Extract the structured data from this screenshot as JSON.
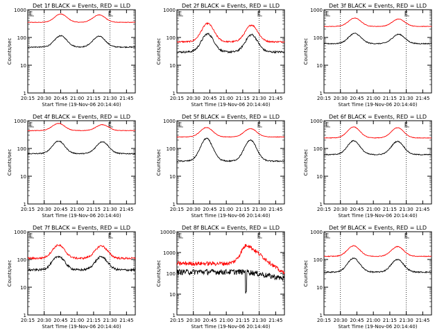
{
  "chart_data": [
    {
      "type": "line",
      "title": "Det 1f BLACK = Events, RED = LLD",
      "ylabel": "Counts/sec",
      "xlabel": "Start Time (19-Nov-06 20:14:40)",
      "ylim": [
        1,
        1000
      ],
      "yscale": "log",
      "xlim": [
        "20:15",
        "21:53"
      ],
      "x_ticks": [
        "20:15",
        "20:30",
        "20:45",
        "21:00",
        "21:15",
        "21:30",
        "21:45"
      ],
      "y_ticks": [
        "1",
        "10",
        "100",
        "1000"
      ],
      "markers": [
        {
          "label": "E",
          "at": "20:15"
        },
        {
          "label": "E",
          "at": "21:27"
        }
      ],
      "vlines": [
        "20:30",
        "21:30"
      ],
      "series": [
        {
          "color": "#ff0000",
          "base": 350,
          "peaks": [
            {
              "t": "20:45",
              "v": 700
            },
            {
              "t": "21:20",
              "v": 650
            }
          ],
          "noise": 0.02
        },
        {
          "color": "#000000",
          "base": 45,
          "peaks": [
            {
              "t": "20:45",
              "v": 115
            },
            {
              "t": "21:20",
              "v": 110
            }
          ],
          "noise": 0.04
        }
      ]
    },
    {
      "type": "line",
      "title": "Det 2f BLACK = Events, RED = LLD",
      "ylabel": "Counts/sec",
      "xlabel": "Start Time (19-Nov-06 20:14:40)",
      "ylim": [
        1,
        1000
      ],
      "yscale": "log",
      "xlim": [
        "20:15",
        "21:53"
      ],
      "x_ticks": [
        "20:15",
        "20:30",
        "20:45",
        "21:00",
        "21:15",
        "21:30",
        "21:45"
      ],
      "y_ticks": [
        "1",
        "10",
        "100",
        "1000"
      ],
      "markers": [
        {
          "label": "E",
          "at": "20:15"
        },
        {
          "label": "E",
          "at": "21:27"
        }
      ],
      "vlines": [
        "20:30",
        "21:30"
      ],
      "series": [
        {
          "color": "#ff0000",
          "base": 70,
          "peaks": [
            {
              "t": "20:43",
              "v": 320
            },
            {
              "t": "21:23",
              "v": 280
            }
          ],
          "noise": 0.06
        },
        {
          "color": "#000000",
          "base": 30,
          "peaks": [
            {
              "t": "20:43",
              "v": 135
            },
            {
              "t": "21:23",
              "v": 125
            }
          ],
          "noise": 0.08
        }
      ]
    },
    {
      "type": "line",
      "title": "Det 3f BLACK = Events, RED = LLD",
      "ylabel": "Counts/sec",
      "xlabel": "Start Time (19-Nov-06 20:14:40)",
      "ylim": [
        1,
        1000
      ],
      "yscale": "log",
      "xlim": [
        "20:15",
        "21:53"
      ],
      "x_ticks": [
        "20:15",
        "20:30",
        "20:45",
        "21:00",
        "21:15",
        "21:30",
        "21:45"
      ],
      "y_ticks": [
        "1",
        "10",
        "100",
        "1000"
      ],
      "markers": [
        {
          "label": "E",
          "at": "20:15"
        },
        {
          "label": "E",
          "at": "21:27"
        }
      ],
      "vlines": [
        "20:30",
        "21:30"
      ],
      "series": [
        {
          "color": "#ff0000",
          "base": 250,
          "peaks": [
            {
              "t": "20:43",
              "v": 500
            },
            {
              "t": "21:23",
              "v": 460
            }
          ],
          "noise": 0.02
        },
        {
          "color": "#000000",
          "base": 60,
          "peaks": [
            {
              "t": "20:43",
              "v": 140
            },
            {
              "t": "21:23",
              "v": 130
            }
          ],
          "noise": 0.04
        }
      ]
    },
    {
      "type": "line",
      "title": "Det 4f BLACK = Events, RED = LLD",
      "ylabel": "Counts/sec",
      "xlabel": "Start Time (19-Nov-06 20:14:40)",
      "ylim": [
        1,
        1000
      ],
      "yscale": "log",
      "xlim": [
        "20:15",
        "21:53"
      ],
      "x_ticks": [
        "20:15",
        "20:30",
        "20:45",
        "21:00",
        "21:15",
        "21:30",
        "21:45"
      ],
      "y_ticks": [
        "1",
        "10",
        "100",
        "1000"
      ],
      "markers": [
        {
          "label": "E",
          "at": "20:15"
        },
        {
          "label": "E",
          "at": "21:27"
        }
      ],
      "vlines": [
        "20:30",
        "21:30"
      ],
      "series": [
        {
          "color": "#ff0000",
          "base": 440,
          "peaks": [
            {
              "t": "20:43",
              "v": 800
            },
            {
              "t": "21:23",
              "v": 720
            }
          ],
          "noise": 0.02
        },
        {
          "color": "#000000",
          "base": 65,
          "peaks": [
            {
              "t": "20:43",
              "v": 185
            },
            {
              "t": "21:23",
              "v": 175
            }
          ],
          "noise": 0.04
        }
      ]
    },
    {
      "type": "line",
      "title": "Det 5f BLACK = Events, RED = LLD",
      "ylabel": "Counts/sec",
      "xlabel": "Start Time (19-Nov-06 20:14:40)",
      "ylim": [
        1,
        1000
      ],
      "yscale": "log",
      "xlim": [
        "20:15",
        "21:53"
      ],
      "x_ticks": [
        "20:15",
        "20:30",
        "20:45",
        "21:00",
        "21:15",
        "21:30",
        "21:45"
      ],
      "y_ticks": [
        "1",
        "10",
        "100",
        "1000"
      ],
      "markers": [
        {
          "label": "E",
          "at": "20:15"
        },
        {
          "label": "E",
          "at": "21:27"
        }
      ],
      "vlines": [
        "20:30",
        "21:30"
      ],
      "series": [
        {
          "color": "#ff0000",
          "base": 260,
          "peaks": [
            {
              "t": "20:42",
              "v": 570
            },
            {
              "t": "21:22",
              "v": 520
            }
          ],
          "noise": 0.02
        },
        {
          "color": "#000000",
          "base": 35,
          "peaks": [
            {
              "t": "20:42",
              "v": 230
            },
            {
              "t": "21:22",
              "v": 200
            }
          ],
          "noise": 0.05
        }
      ]
    },
    {
      "type": "line",
      "title": "Det 6f BLACK = Events, RED = LLD",
      "ylabel": "Counts/sec",
      "xlabel": "Start Time (19-Nov-06 20:14:40)",
      "ylim": [
        1,
        1000
      ],
      "yscale": "log",
      "xlim": [
        "20:15",
        "21:53"
      ],
      "x_ticks": [
        "20:15",
        "20:30",
        "20:45",
        "21:00",
        "21:15",
        "21:30",
        "21:45"
      ],
      "y_ticks": [
        "1",
        "10",
        "100",
        "1000"
      ],
      "markers": [
        {
          "label": "E",
          "at": "20:15"
        },
        {
          "label": "E",
          "at": "21:27"
        }
      ],
      "vlines": [
        "20:30",
        "21:30"
      ],
      "series": [
        {
          "color": "#ff0000",
          "base": 240,
          "peaks": [
            {
              "t": "20:42",
              "v": 600
            },
            {
              "t": "21:22",
              "v": 560
            }
          ],
          "noise": 0.02
        },
        {
          "color": "#000000",
          "base": 60,
          "peaks": [
            {
              "t": "20:42",
              "v": 190
            },
            {
              "t": "21:22",
              "v": 180
            }
          ],
          "noise": 0.04
        }
      ]
    },
    {
      "type": "line",
      "title": "Det 7f BLACK = Events, RED = LLD",
      "ylabel": "Counts/sec",
      "xlabel": "Start Time (19-Nov-06 20:14:40)",
      "ylim": [
        1,
        1000
      ],
      "yscale": "log",
      "xlim": [
        "20:15",
        "21:53"
      ],
      "x_ticks": [
        "20:15",
        "20:30",
        "20:45",
        "21:00",
        "21:15",
        "21:30",
        "21:45"
      ],
      "y_ticks": [
        "1",
        "10",
        "100",
        "1000"
      ],
      "markers": [
        {
          "label": "E",
          "at": "20:15"
        },
        {
          "label": "E",
          "at": "21:27"
        }
      ],
      "vlines": [
        "20:30",
        "21:30"
      ],
      "series": [
        {
          "color": "#ff0000",
          "base": 110,
          "peaks": [
            {
              "t": "20:43",
              "v": 330
            },
            {
              "t": "21:22",
              "v": 310
            }
          ],
          "noise": 0.08
        },
        {
          "color": "#000000",
          "base": 42,
          "peaks": [
            {
              "t": "20:43",
              "v": 130
            },
            {
              "t": "21:22",
              "v": 125
            }
          ],
          "noise": 0.09
        }
      ]
    },
    {
      "type": "line",
      "title": "Det 8f BLACK = Events, RED = LLD",
      "ylabel": "Counts/sec",
      "xlabel": "Start Time (19-Nov-06 20:14:40)",
      "ylim": [
        1,
        10000
      ],
      "yscale": "log",
      "xlim": [
        "20:15",
        "21:53"
      ],
      "x_ticks": [
        "20:15",
        "20:30",
        "20:45",
        "21:00",
        "21:15",
        "21:30",
        "21:45"
      ],
      "y_ticks": [
        "1",
        "10",
        "100",
        "1000",
        "10000"
      ],
      "markers": [
        {
          "label": "E",
          "at": "20:15"
        },
        {
          "label": "E",
          "at": "21:27"
        }
      ],
      "vlines": [
        "20:30",
        "21:30"
      ],
      "series": [
        {
          "color": "#ff0000",
          "base": 300,
          "peaks": [
            {
              "t": "21:19",
              "v": 2300
            }
          ],
          "noise": 0.22,
          "tail": 120
        },
        {
          "color": "#000000",
          "base": 120,
          "peaks": [],
          "noise": 0.3,
          "tail": 60,
          "dip": {
            "t": "21:18",
            "v": 15
          }
        }
      ]
    },
    {
      "type": "line",
      "title": "Det 9f BLACK = Events, RED = LLD",
      "ylabel": "Counts/sec",
      "xlabel": "Start Time (19-Nov-06 20:14:40)",
      "ylim": [
        1,
        1000
      ],
      "yscale": "log",
      "xlim": [
        "20:15",
        "21:53"
      ],
      "x_ticks": [
        "20:15",
        "20:30",
        "20:45",
        "21:00",
        "21:15",
        "21:30",
        "21:45"
      ],
      "y_ticks": [
        "1",
        "10",
        "100",
        "1000"
      ],
      "markers": [
        {
          "label": "E",
          "at": "20:15"
        },
        {
          "label": "E",
          "at": "21:27"
        }
      ],
      "vlines": [
        "20:30",
        "21:30"
      ],
      "series": [
        {
          "color": "#ff0000",
          "base": 130,
          "peaks": [
            {
              "t": "20:42",
              "v": 310
            },
            {
              "t": "21:22",
              "v": 290
            }
          ],
          "noise": 0.03
        },
        {
          "color": "#000000",
          "base": 35,
          "peaks": [
            {
              "t": "20:42",
              "v": 110
            },
            {
              "t": "21:22",
              "v": 100
            }
          ],
          "noise": 0.05
        }
      ]
    }
  ]
}
